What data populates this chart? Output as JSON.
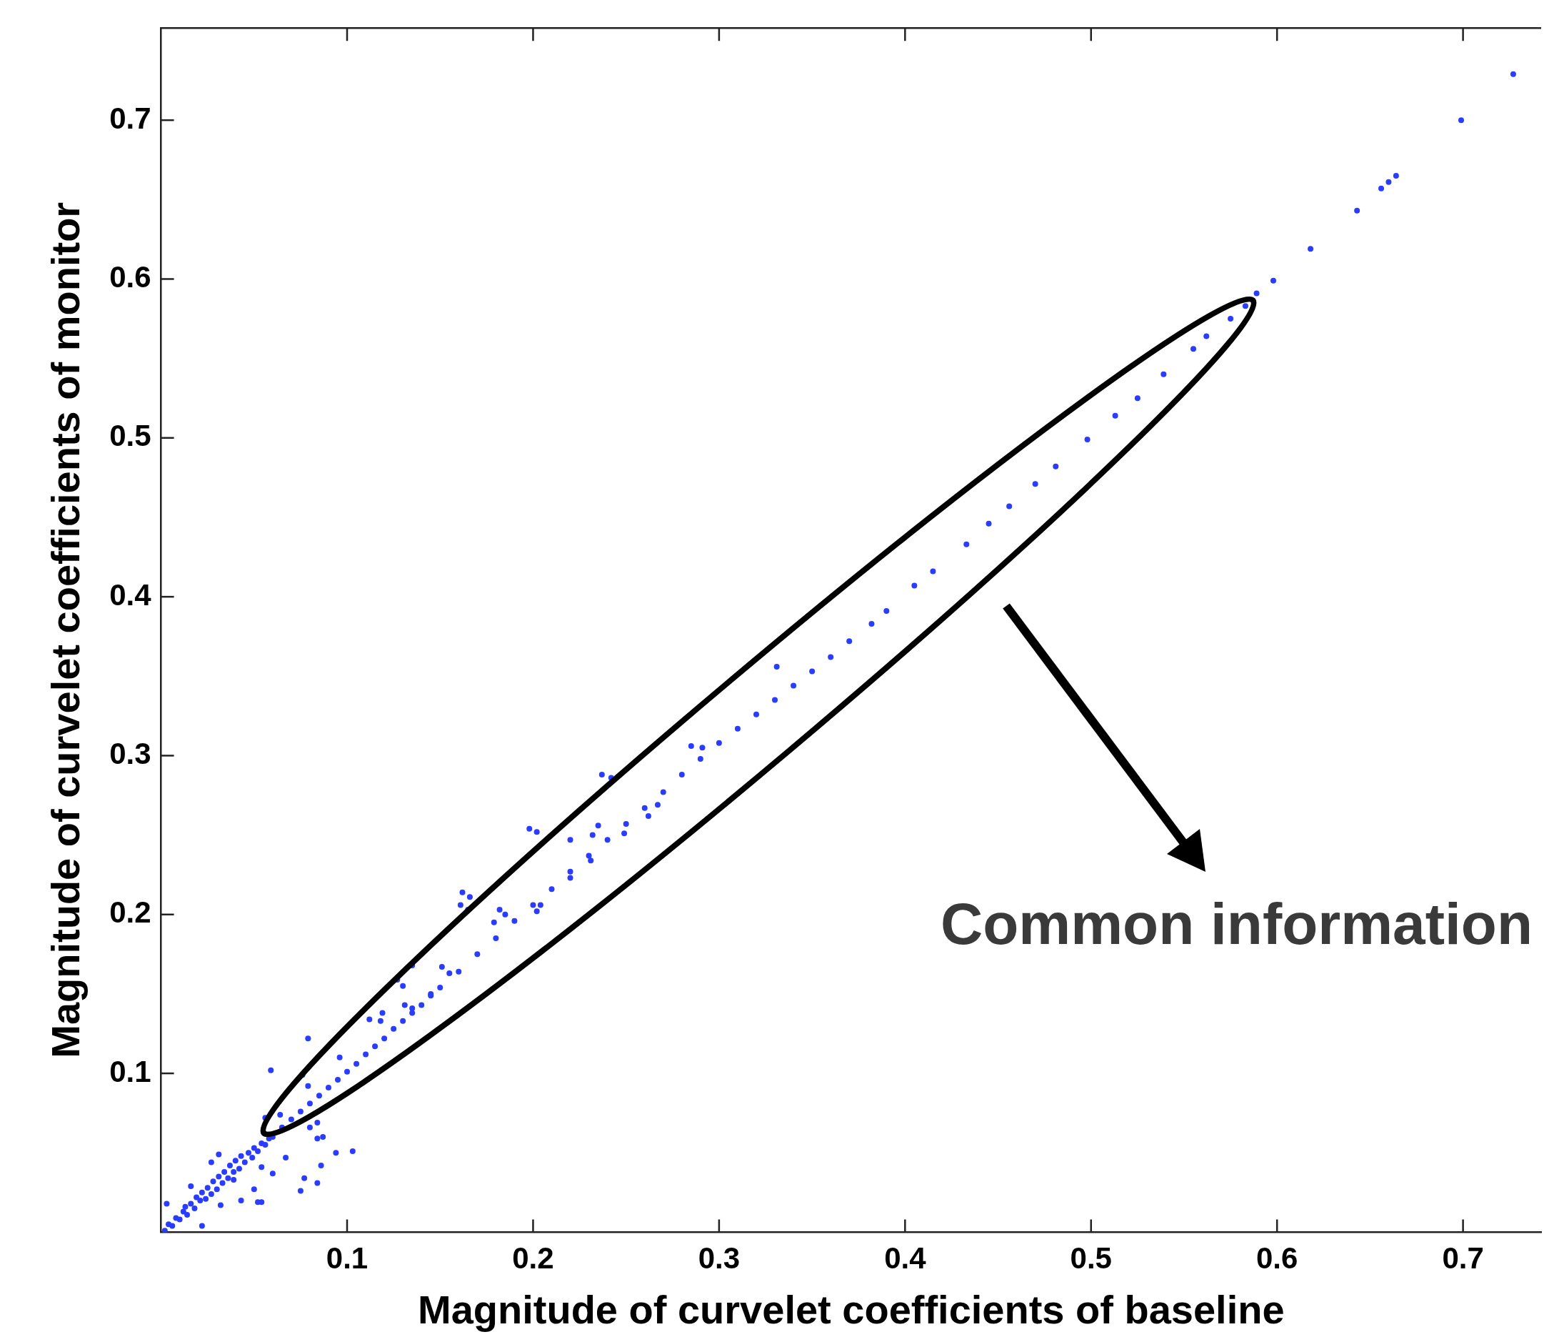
{
  "chart_data": {
    "type": "scatter",
    "xlabel": "Magnitude of curvelet coefficients of baseline",
    "ylabel": "Magnitude of curvelet coefficients of monitor",
    "annotations": [
      "Common information"
    ],
    "x": [
      0.002,
      0.004,
      0.006,
      0.008,
      0.01,
      0.012,
      0.013,
      0.014,
      0.016,
      0.018,
      0.019,
      0.021,
      0.022,
      0.024,
      0.025,
      0.027,
      0.028,
      0.03,
      0.031,
      0.033,
      0.034,
      0.036,
      0.037,
      0.039,
      0.04,
      0.042,
      0.043,
      0.045,
      0.047,
      0.049,
      0.05,
      0.052,
      0.054,
      0.056,
      0.058,
      0.06,
      0.079,
      0.059,
      0.103,
      0.094,
      0.067,
      0.086,
      0.077,
      0.084,
      0.075,
      0.087,
      0.084,
      0.08,
      0.084,
      0.096,
      0.022,
      0.052,
      0.054,
      0.05,
      0.043,
      0.032,
      0.039,
      0.06,
      0.054,
      0.031,
      0.027,
      0.016,
      0.003,
      0.076,
      0.079,
      0.119,
      0.118,
      0.112,
      0.131,
      0.135,
      0.127,
      0.13,
      0.145,
      0.064,
      0.056,
      0.237,
      0.198,
      0.22,
      0.235,
      0.232,
      0.231,
      0.249,
      0.267,
      0.262,
      0.285,
      0.22,
      0.202,
      0.204,
      0.182,
      0.179,
      0.162,
      0.161,
      0.151,
      0.135,
      0.331,
      0.242,
      0.291,
      0.202,
      0.165,
      0.166,
      0.185,
      0.155,
      0.065,
      0.07,
      0.075,
      0.08,
      0.085,
      0.09,
      0.095,
      0.1,
      0.105,
      0.11,
      0.115,
      0.12,
      0.125,
      0.13,
      0.135,
      0.14,
      0.145,
      0.15,
      0.16,
      0.17,
      0.18,
      0.19,
      0.2,
      0.21,
      0.22,
      0.23,
      0.24,
      0.25,
      0.26,
      0.27,
      0.28,
      0.29,
      0.3,
      0.31,
      0.32,
      0.33,
      0.34,
      0.35,
      0.36,
      0.37,
      0.382,
      0.39,
      0.405,
      0.415,
      0.433,
      0.445,
      0.456,
      0.47,
      0.481,
      0.498,
      0.513,
      0.525,
      0.539,
      0.555,
      0.562,
      0.575,
      0.583,
      0.589,
      0.598,
      0.618,
      0.643,
      0.656,
      0.66,
      0.664,
      0.699,
      0.727
    ],
    "values": [
      0.001,
      0.005,
      0.004,
      0.009,
      0.008,
      0.013,
      0.016,
      0.011,
      0.018,
      0.015,
      0.022,
      0.02,
      0.025,
      0.021,
      0.028,
      0.024,
      0.032,
      0.027,
      0.035,
      0.031,
      0.038,
      0.034,
      0.042,
      0.038,
      0.045,
      0.04,
      0.048,
      0.044,
      0.05,
      0.047,
      0.053,
      0.051,
      0.056,
      0.055,
      0.059,
      0.06,
      0.122,
      0.102,
      0.051,
      0.05,
      0.047,
      0.042,
      0.034,
      0.031,
      0.026,
      0.06,
      0.059,
      0.066,
      0.069,
      0.11,
      0.004,
      0.019,
      0.019,
      0.027,
      0.02,
      0.017,
      0.033,
      0.037,
      0.041,
      0.049,
      0.044,
      0.029,
      0.018,
      0.099,
      0.092,
      0.138,
      0.133,
      0.134,
      0.143,
      0.141,
      0.159,
      0.155,
      0.15,
      0.074,
      0.072,
      0.288,
      0.254,
      0.247,
      0.256,
      0.25,
      0.234,
      0.251,
      0.269,
      0.262,
      0.306,
      0.223,
      0.202,
      0.206,
      0.203,
      0.195,
      0.214,
      0.206,
      0.167,
      0.168,
      0.356,
      0.286,
      0.305,
      0.252,
      0.203,
      0.211,
      0.2,
      0.163,
      0.066,
      0.071,
      0.076,
      0.081,
      0.086,
      0.091,
      0.096,
      0.101,
      0.106,
      0.112,
      0.117,
      0.122,
      0.128,
      0.133,
      0.138,
      0.143,
      0.149,
      0.154,
      0.164,
      0.175,
      0.185,
      0.196,
      0.206,
      0.216,
      0.227,
      0.237,
      0.247,
      0.257,
      0.267,
      0.277,
      0.288,
      0.298,
      0.308,
      0.317,
      0.326,
      0.335,
      0.344,
      0.353,
      0.362,
      0.372,
      0.383,
      0.391,
      0.407,
      0.416,
      0.433,
      0.446,
      0.457,
      0.471,
      0.482,
      0.499,
      0.514,
      0.525,
      0.54,
      0.556,
      0.564,
      0.575,
      0.583,
      0.591,
      0.599,
      0.619,
      0.643,
      0.657,
      0.661,
      0.665,
      0.7,
      0.729
    ],
    "color": "#2a3cff",
    "marker": "circle",
    "xlim": [
      0,
      0.742
    ],
    "ylim": [
      0,
      0.758
    ],
    "xticks": [
      0.1,
      0.2,
      0.3,
      0.4,
      0.5,
      0.6,
      0.7
    ],
    "yticks": [
      0.1,
      0.2,
      0.3,
      0.4,
      0.5,
      0.6,
      0.7
    ],
    "grid": false,
    "legend": false
  }
}
